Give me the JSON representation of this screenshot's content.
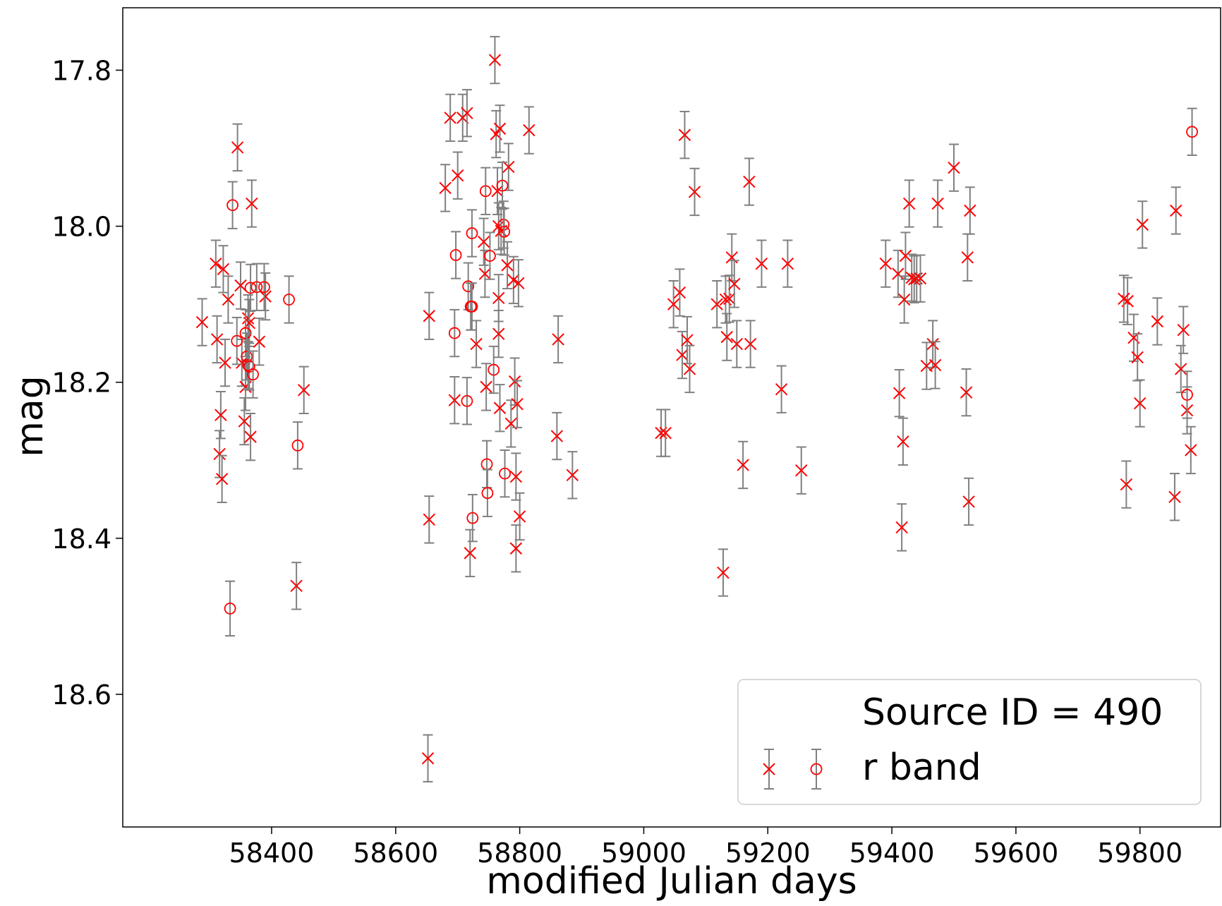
{
  "chart_data": {
    "type": "scatter",
    "xlabel": "modified Julian days",
    "ylabel": "mag",
    "xlim": [
      58160,
      59930
    ],
    "ylim": [
      18.77,
      17.72
    ],
    "y_inverted": true,
    "xticks": [
      58400,
      58600,
      58800,
      59000,
      59200,
      59400,
      59600,
      59800
    ],
    "xtick_labels": [
      "58400",
      "58600",
      "58800",
      "59000",
      "59200",
      "59400",
      "59600",
      "59800"
    ],
    "yticks": [
      17.8,
      18.0,
      18.2,
      18.4,
      18.6
    ],
    "ytick_labels": [
      "17.8",
      "18.0",
      "18.2",
      "18.4",
      "18.6"
    ],
    "grid": false,
    "legend": {
      "placement": "lower-right",
      "title": "Source ID = 490",
      "entries": [
        "r band"
      ]
    },
    "colors": {
      "marker": "#ff0000",
      "errorbar": "#808080",
      "axes": "#000000"
    },
    "series": [
      {
        "name": "r band (x markers)",
        "marker": "x",
        "x": [
          58288,
          58310,
          58312,
          58316,
          58318,
          58320,
          58322,
          58325,
          58330,
          58345,
          58350,
          58352,
          58356,
          58358,
          58362,
          58364,
          58366,
          58368,
          58380,
          58390,
          58440,
          58452,
          58652,
          58654,
          58654,
          58680,
          58688,
          58695,
          58700,
          58708,
          58715,
          58720,
          58730,
          58742,
          58744,
          58746,
          58760,
          58762,
          58764,
          58766,
          58766,
          58766,
          58768,
          58768,
          58770,
          58780,
          58782,
          58786,
          58790,
          58792,
          58794,
          58794,
          58796,
          58798,
          58800,
          58815,
          58860,
          58862,
          58885,
          59028,
          59035,
          59048,
          59058,
          59062,
          59066,
          59070,
          59074,
          59082,
          59118,
          59128,
          59132,
          59134,
          59138,
          59142,
          59146,
          59150,
          59160,
          59170,
          59172,
          59190,
          59222,
          59232,
          59254,
          59390,
          59410,
          59412,
          59416,
          59418,
          59420,
          59422,
          59428,
          59432,
          59436,
          59440,
          59446,
          59456,
          59466,
          59474,
          59470,
          59500,
          59520,
          59522,
          59524,
          59526,
          59780,
          59778,
          59790,
          59796,
          59800,
          59774,
          59804,
          59828,
          59856,
          59858,
          59866,
          59870,
          59876,
          59882
        ],
        "y": [
          18.123,
          18.048,
          18.145,
          18.292,
          18.242,
          18.324,
          18.055,
          18.175,
          18.094,
          17.899,
          18.076,
          18.175,
          18.25,
          18.206,
          18.118,
          18.124,
          18.27,
          17.971,
          18.148,
          18.09,
          18.461,
          18.21,
          18.682,
          18.376,
          18.115,
          17.951,
          17.861,
          18.223,
          17.935,
          17.861,
          17.855,
          18.419,
          18.151,
          18.02,
          18.061,
          18.206,
          17.787,
          17.882,
          17.955,
          18.0,
          18.138,
          18.092,
          18.233,
          17.875,
          18.006,
          18.05,
          17.924,
          18.253,
          18.069,
          18.199,
          18.321,
          18.413,
          18.228,
          18.073,
          18.372,
          17.877,
          18.269,
          18.145,
          18.319,
          18.265,
          18.265,
          18.1,
          18.085,
          18.165,
          17.883,
          18.146,
          18.183,
          17.956,
          18.1,
          18.444,
          18.094,
          18.142,
          18.093,
          18.04,
          18.074,
          18.151,
          18.306,
          17.943,
          18.151,
          18.048,
          18.209,
          18.048,
          18.313,
          18.048,
          18.061,
          18.214,
          18.386,
          18.276,
          18.094,
          18.038,
          17.971,
          18.066,
          18.068,
          18.067,
          18.067,
          18.179,
          18.151,
          17.971,
          18.178,
          17.925,
          18.213,
          18.04,
          18.353,
          17.98,
          18.096,
          18.331,
          18.143,
          18.168,
          18.227,
          18.093,
          17.998,
          18.122,
          18.347,
          17.98,
          18.183,
          18.133,
          18.236,
          18.287
        ]
      },
      {
        "name": "r band (o markers)",
        "marker": "o",
        "x": [
          58333,
          58337,
          58344,
          58358,
          58360,
          58362,
          58364,
          58366,
          58370,
          58376,
          58388,
          58428,
          58442,
          58695,
          58697,
          58715,
          58717,
          58721,
          58723,
          58723,
          58724,
          58745,
          58747,
          58748,
          58752,
          58758,
          58772,
          58774,
          58775,
          58776,
          59876,
          59884
        ],
        "y": [
          18.49,
          17.973,
          18.147,
          18.137,
          18.167,
          18.178,
          18.18,
          18.079,
          18.19,
          18.078,
          18.078,
          18.094,
          18.281,
          18.137,
          18.037,
          18.224,
          18.077,
          18.103,
          18.009,
          18.103,
          18.374,
          17.955,
          18.305,
          18.342,
          18.038,
          18.184,
          17.948,
          17.998,
          18.007,
          18.317,
          18.216,
          17.879
        ],
        "yerr": [
          0.035,
          0.03,
          0.03,
          0.03,
          0.03,
          0.03,
          0.03,
          0.03,
          0.03,
          0.03,
          0.03,
          0.03,
          0.03,
          0.03,
          0.03,
          0.03,
          0.03,
          0.03,
          0.03,
          0.03,
          0.03,
          0.03,
          0.03,
          0.03,
          0.03,
          0.03,
          0.03,
          0.03,
          0.03,
          0.03,
          0.03,
          0.03
        ]
      }
    ]
  }
}
